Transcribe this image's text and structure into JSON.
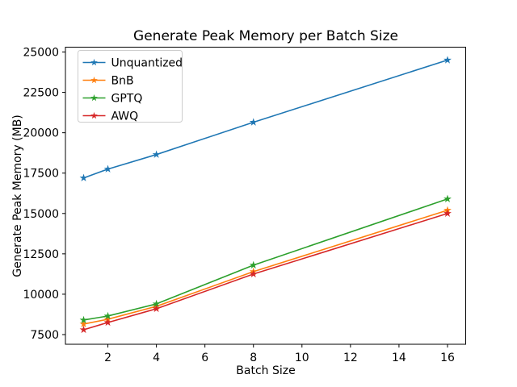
{
  "figure": {
    "background": "#ffffff"
  },
  "chart_data": {
    "type": "line",
    "title": "Generate Peak Memory per Batch Size",
    "xlabel": "Batch Size",
    "ylabel": "Generate Peak Memory (MB)",
    "x": [
      1,
      2,
      4,
      8,
      16
    ],
    "series": [
      {
        "name": "Unquantized",
        "color": "#1f77b4",
        "marker": "star",
        "values": [
          17200,
          17750,
          18650,
          20650,
          24500
        ]
      },
      {
        "name": "BnB",
        "color": "#ff7f0e",
        "marker": "star",
        "values": [
          8150,
          8450,
          9250,
          11400,
          15200
        ]
      },
      {
        "name": "GPTQ",
        "color": "#2ca02c",
        "marker": "star",
        "values": [
          8400,
          8650,
          9400,
          11800,
          15900
        ]
      },
      {
        "name": "AWQ",
        "color": "#d62728",
        "marker": "star",
        "values": [
          7800,
          8250,
          9100,
          11250,
          15000
        ]
      }
    ],
    "xticks": [
      2,
      4,
      6,
      8,
      10,
      12,
      14,
      16
    ],
    "yticks": [
      7500,
      10000,
      12500,
      15000,
      17500,
      20000,
      22500,
      25000
    ],
    "xlim": [
      0.25,
      16.75
    ],
    "ylim": [
      6900,
      25300
    ],
    "grid": false,
    "legend": {
      "position": "upper-left",
      "entries": [
        "Unquantized",
        "BnB",
        "GPTQ",
        "AWQ"
      ]
    },
    "axis_color": "#000000",
    "legend_border_color": "#cccccc"
  }
}
